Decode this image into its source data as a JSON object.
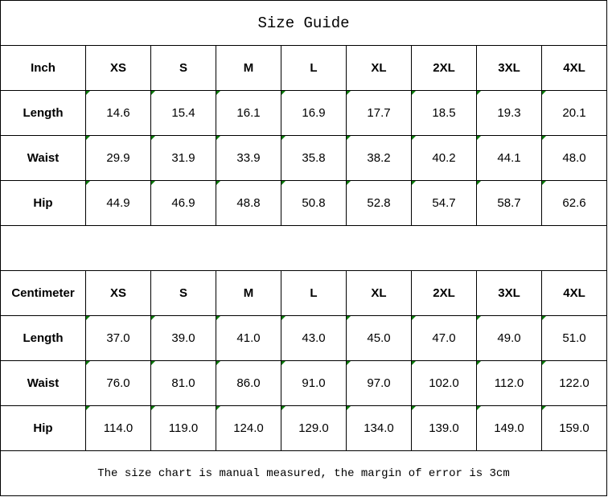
{
  "title": "Size Guide",
  "sizes": [
    "XS",
    "S",
    "M",
    "L",
    "XL",
    "2XL",
    "3XL",
    "4XL"
  ],
  "tables": [
    {
      "unit": "Inch",
      "rows": [
        {
          "label": "Length",
          "values": [
            "14.6",
            "15.4",
            "16.1",
            "16.9",
            "17.7",
            "18.5",
            "19.3",
            "20.1"
          ]
        },
        {
          "label": "Waist",
          "values": [
            "29.9",
            "31.9",
            "33.9",
            "35.8",
            "38.2",
            "40.2",
            "44.1",
            "48.0"
          ]
        },
        {
          "label": "Hip",
          "values": [
            "44.9",
            "46.9",
            "48.8",
            "50.8",
            "52.8",
            "54.7",
            "58.7",
            "62.6"
          ]
        }
      ]
    },
    {
      "unit": "Centimeter",
      "rows": [
        {
          "label": "Length",
          "values": [
            "37.0",
            "39.0",
            "41.0",
            "43.0",
            "45.0",
            "47.0",
            "49.0",
            "51.0"
          ]
        },
        {
          "label": "Waist",
          "values": [
            "76.0",
            "81.0",
            "86.0",
            "91.0",
            "97.0",
            "102.0",
            "112.0",
            "122.0"
          ]
        },
        {
          "label": "Hip",
          "values": [
            "114.0",
            "119.0",
            "124.0",
            "129.0",
            "134.0",
            "139.0",
            "149.0",
            "159.0"
          ]
        }
      ]
    }
  ],
  "note": "The size chart is manual measured, the margin of error is 3cm",
  "colors": {
    "error_indicator": "#0a7a0a"
  }
}
